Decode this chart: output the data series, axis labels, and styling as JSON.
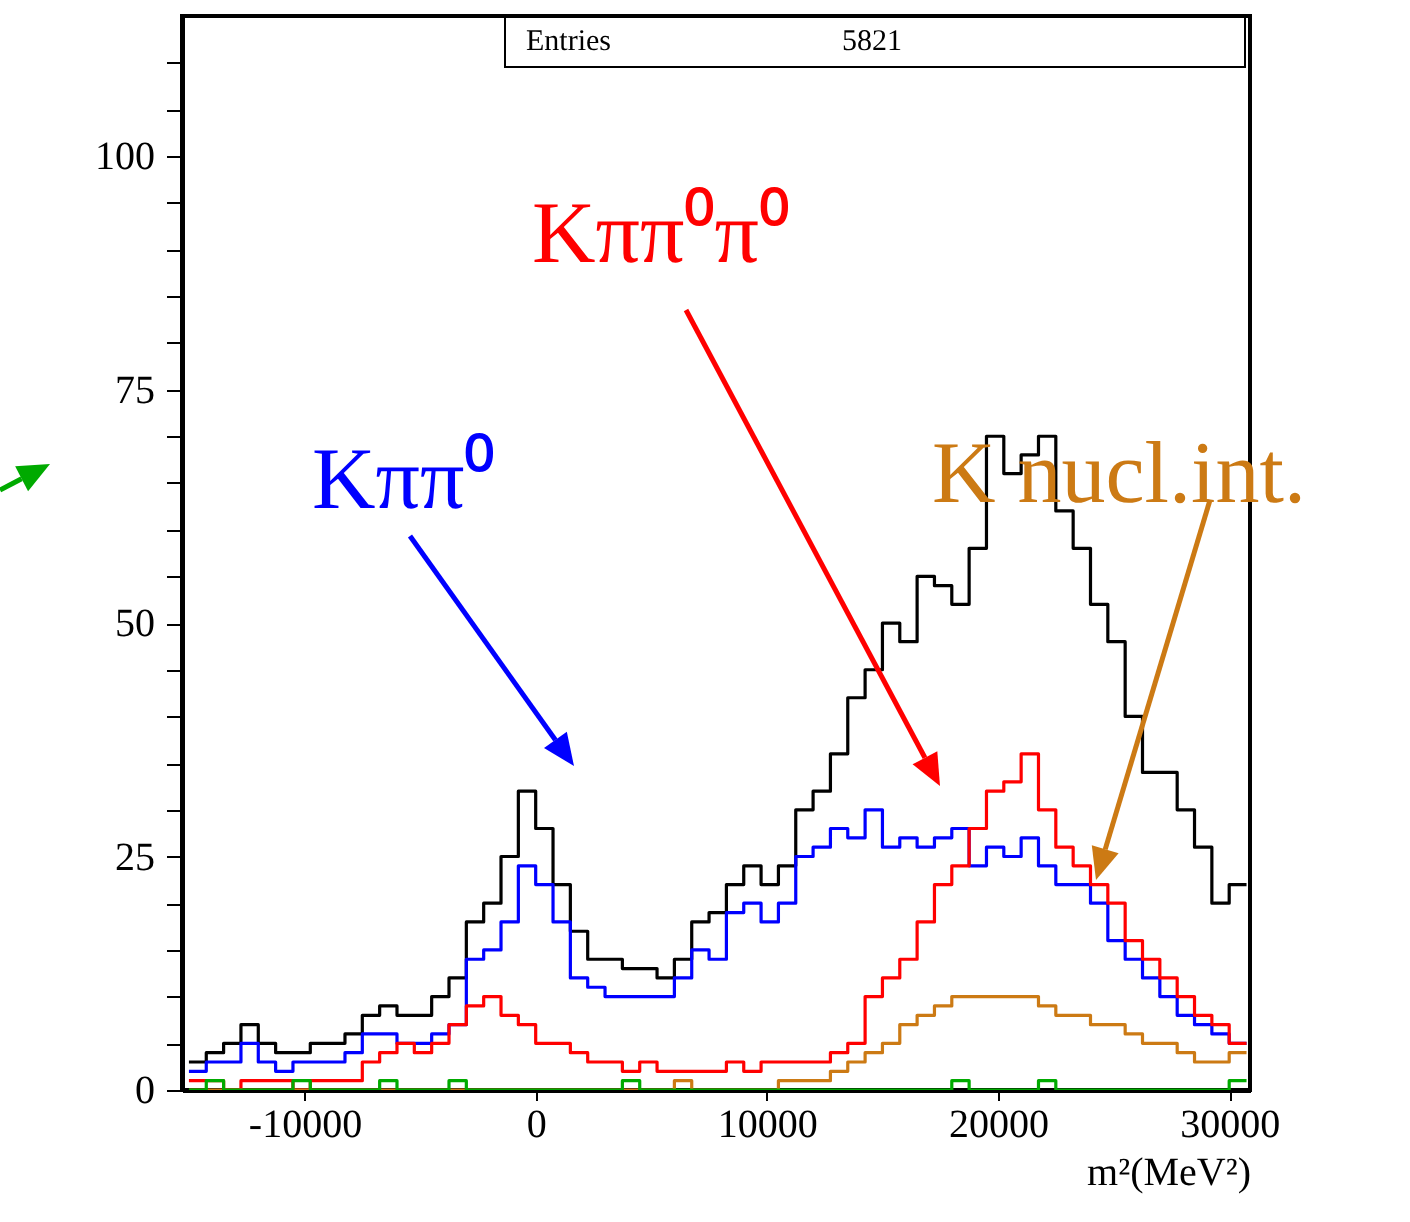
{
  "chart_data": {
    "type": "histogram",
    "xlabel": "m²(MeV²)",
    "annotations": [
      "Entries",
      "5821"
    ],
    "bins": [
      -15000,
      -14250,
      -13500,
      -12750,
      -12000,
      -11250,
      -10500,
      -9750,
      -9000,
      -8250,
      -7500,
      -6750,
      -6000,
      -5250,
      -4500,
      -3750,
      -3000,
      -2250,
      -1500,
      -750,
      0,
      750,
      1500,
      2250,
      3000,
      3750,
      4500,
      5250,
      6000,
      6750,
      7500,
      8250,
      9000,
      9750,
      10500,
      11250,
      12000,
      12750,
      13500,
      14250,
      15000,
      15750,
      16500,
      17250,
      18000,
      18750,
      19500,
      20250,
      21000,
      21750,
      22500,
      23250,
      24000,
      24750,
      25500,
      26250,
      27000,
      27750,
      28500,
      29250,
      30000,
      30750
    ],
    "series": [
      {
        "color": "#000000",
        "values": [
          3,
          4,
          5,
          7,
          5,
          4,
          4,
          5,
          5,
          6,
          8,
          9,
          8,
          8,
          10,
          12,
          18,
          20,
          25,
          32,
          28,
          22,
          17,
          14,
          14,
          13,
          13,
          12,
          14,
          18,
          19,
          22,
          24,
          22,
          24,
          30,
          32,
          36,
          42,
          45,
          50,
          48,
          55,
          54,
          52,
          58,
          70,
          66,
          68,
          70,
          62,
          58,
          52,
          48,
          40,
          34,
          34,
          30,
          26,
          20,
          22
        ]
      },
      {
        "name": "Kππ⁰",
        "color": "#0000ff",
        "values": [
          2,
          3,
          3,
          5,
          3,
          2,
          3,
          3,
          3,
          4,
          6,
          6,
          5,
          5,
          6,
          7,
          14,
          15,
          18,
          24,
          22,
          18,
          12,
          11,
          10,
          10,
          10,
          10,
          12,
          15,
          14,
          19,
          20,
          18,
          20,
          25,
          26,
          28,
          27,
          30,
          26,
          27,
          26,
          27,
          28,
          24,
          26,
          25,
          27,
          24,
          22,
          22,
          20,
          16,
          14,
          12,
          10,
          8,
          7,
          6,
          5
        ]
      },
      {
        "name": "Kππ⁰π⁰",
        "color": "#ff0000",
        "values": [
          1,
          1,
          0,
          1,
          1,
          1,
          0,
          1,
          1,
          1,
          3,
          4,
          5,
          4,
          5,
          7,
          9,
          10,
          8,
          7,
          5,
          5,
          4,
          3,
          3,
          2,
          3,
          2,
          2,
          2,
          2,
          3,
          2,
          3,
          3,
          3,
          3,
          4,
          5,
          10,
          12,
          14,
          18,
          22,
          24,
          28,
          32,
          33,
          36,
          30,
          26,
          24,
          22,
          20,
          16,
          14,
          12,
          10,
          8,
          7,
          5
        ]
      },
      {
        "name": "K nucl.int.",
        "color": "#cc7a14",
        "values": [
          0,
          0,
          0,
          0,
          0,
          0,
          0,
          0,
          0,
          0,
          0,
          0,
          0,
          0,
          0,
          0,
          0,
          0,
          0,
          0,
          0,
          0,
          0,
          0,
          0,
          0,
          0,
          0,
          1,
          0,
          0,
          0,
          0,
          0,
          1,
          1,
          1,
          2,
          3,
          4,
          5,
          7,
          8,
          9,
          10,
          10,
          10,
          10,
          10,
          9,
          8,
          8,
          7,
          7,
          6,
          5,
          5,
          4,
          3,
          3,
          4
        ]
      },
      {
        "color": "#00aa00",
        "values": [
          0,
          1,
          0,
          0,
          0,
          0,
          1,
          0,
          0,
          0,
          0,
          1,
          0,
          0,
          0,
          1,
          0,
          0,
          0,
          0,
          0,
          0,
          0,
          0,
          0,
          1,
          0,
          0,
          0,
          0,
          0,
          0,
          0,
          0,
          0,
          0,
          0,
          0,
          0,
          0,
          0,
          0,
          0,
          0,
          1,
          0,
          0,
          0,
          0,
          1,
          0,
          0,
          0,
          0,
          0,
          0,
          0,
          0,
          0,
          0,
          1
        ]
      }
    ],
    "xlim": [
      -15300,
      30900
    ],
    "xticks": [
      -10000,
      0,
      10000,
      20000,
      30000
    ],
    "ylim": [
      0,
      115
    ],
    "yticks": [
      0,
      {
        "value": 5,
        "label": null
      },
      {
        "value": 10,
        "label": null
      },
      {
        "value": 15,
        "label": null
      },
      {
        "value": 20,
        "label": null
      },
      25,
      {
        "value": 30,
        "label": null
      },
      {
        "value": 35,
        "label": null
      },
      {
        "value": 40,
        "label": null
      },
      {
        "value": 45,
        "label": null
      },
      50,
      {
        "value": 55,
        "label": null
      },
      {
        "value": 60,
        "label": null
      },
      {
        "value": 65,
        "label": null
      },
      {
        "value": 70,
        "label": null
      },
      75,
      {
        "value": 80,
        "label": null
      },
      {
        "value": 85,
        "label": null
      },
      {
        "value": 90,
        "label": null
      },
      {
        "value": 95,
        "label": null
      },
      100,
      {
        "value": 105,
        "label": null
      },
      {
        "value": 110,
        "label": null
      }
    ],
    "grid": false
  }
}
